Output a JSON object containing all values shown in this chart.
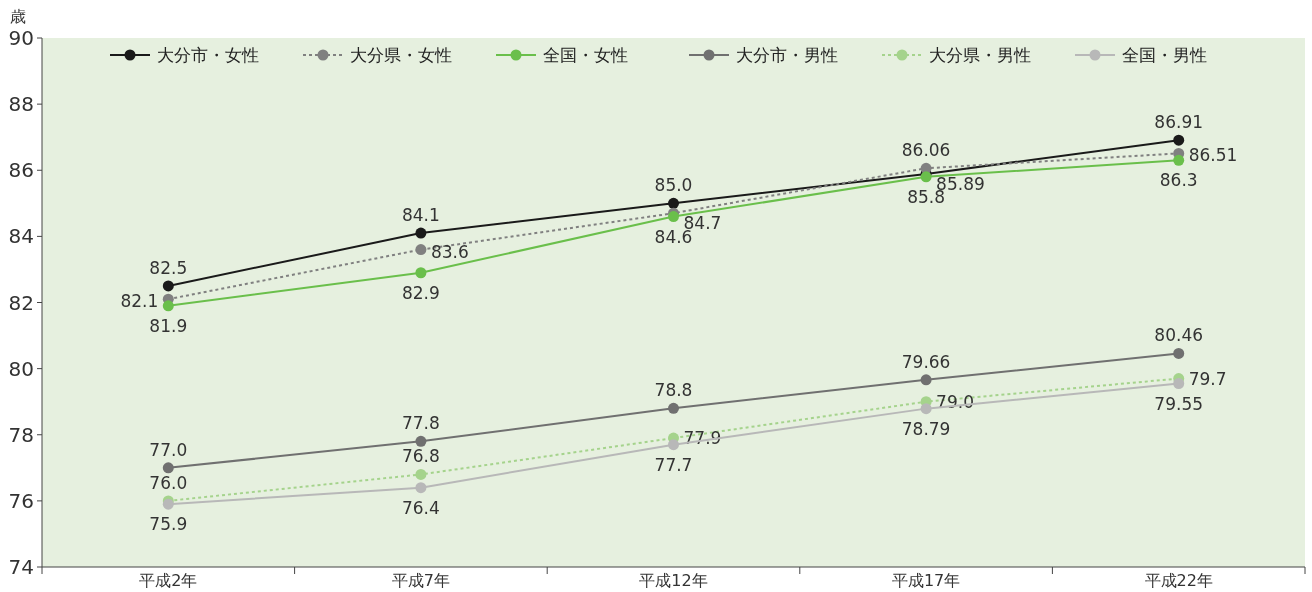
{
  "chart_data": {
    "type": "line",
    "ylabel": "歳",
    "categories": [
      "平成2年",
      "平成7年",
      "平成12年",
      "平成17年",
      "平成22年"
    ],
    "ylim": [
      74,
      90
    ],
    "yticks": [
      74,
      76,
      78,
      80,
      82,
      84,
      86,
      88,
      90
    ],
    "marker": "circle",
    "line_style": "solid",
    "legend": "top",
    "grid": false,
    "data_labels": true,
    "series": [
      {
        "name": "大分市・女性",
        "color": "#1a1a1a",
        "values": [
          82.5,
          84.1,
          85.0,
          85.89,
          86.91
        ],
        "value_labels": [
          "82.5",
          "84.1",
          "85.0",
          "85.89",
          "86.91"
        ]
      },
      {
        "name": "大分県・女性",
        "color": "#808080",
        "line_style": "dotted",
        "values": [
          82.1,
          83.6,
          84.7,
          86.06,
          86.51
        ],
        "value_labels": [
          "82.1",
          "83.6",
          "84.7",
          "86.06",
          "86.51"
        ]
      },
      {
        "name": "全国・女性",
        "color": "#6abf4b",
        "values": [
          81.9,
          82.9,
          84.6,
          85.8,
          86.3
        ],
        "value_labels": [
          "81.9",
          "82.9",
          "84.6",
          "85.8",
          "86.3"
        ]
      },
      {
        "name": "大分市・男性",
        "color": "#707070",
        "values": [
          77.0,
          77.8,
          78.8,
          79.66,
          80.46
        ],
        "value_labels": [
          "77.0",
          "77.8",
          "78.8",
          "79.66",
          "80.46"
        ]
      },
      {
        "name": "大分県・男性",
        "color": "#a5d38c",
        "line_style": "dotted",
        "values": [
          76.0,
          76.8,
          77.9,
          79.0,
          79.7
        ],
        "value_labels": [
          "76.0",
          "76.8",
          "77.9",
          "79.0",
          "79.7"
        ]
      },
      {
        "name": "全国・男性",
        "color": "#b8b8b8",
        "values": [
          75.9,
          76.4,
          77.7,
          78.79,
          79.55
        ],
        "value_labels": [
          "75.9",
          "76.4",
          "77.7",
          "78.79",
          "79.55"
        ]
      }
    ]
  }
}
